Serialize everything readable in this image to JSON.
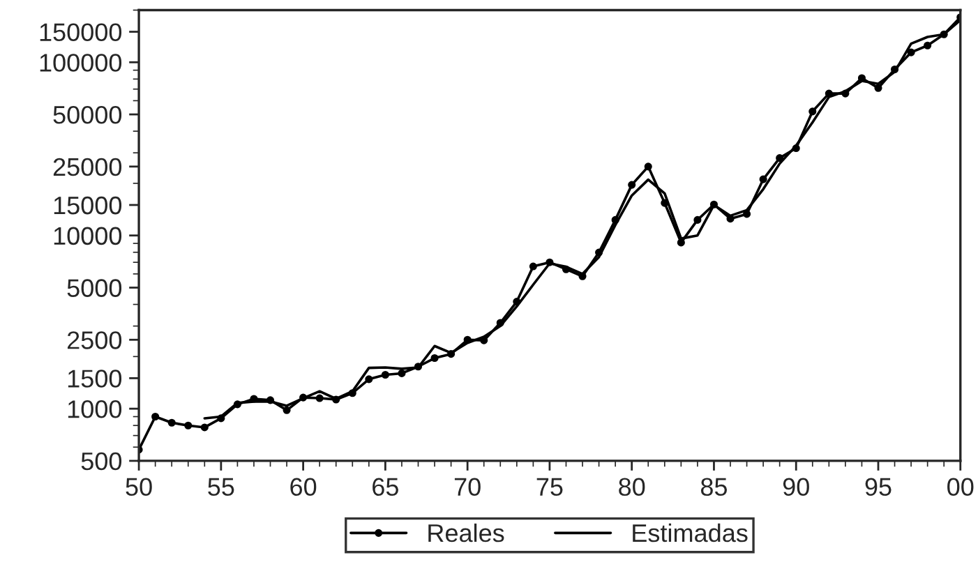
{
  "chart_data": {
    "type": "line",
    "x": [
      1950,
      1951,
      1952,
      1953,
      1954,
      1955,
      1956,
      1957,
      1958,
      1959,
      1960,
      1961,
      1962,
      1963,
      1964,
      1965,
      1966,
      1967,
      1968,
      1969,
      1970,
      1971,
      1972,
      1973,
      1974,
      1975,
      1976,
      1977,
      1978,
      1979,
      1980,
      1981,
      1982,
      1983,
      1984,
      1985,
      1986,
      1987,
      1988,
      1989,
      1990,
      1991,
      1992,
      1993,
      1994,
      1995,
      1996,
      1997,
      1998,
      1999,
      2000
    ],
    "series": [
      {
        "name": "Reales",
        "color": "#000000",
        "marker": "circle",
        "values": [
          580,
          900,
          830,
          800,
          780,
          880,
          1060,
          1140,
          1120,
          980,
          1160,
          1150,
          1130,
          1230,
          1480,
          1570,
          1600,
          1750,
          1960,
          2070,
          2500,
          2480,
          3130,
          4150,
          6630,
          7000,
          6380,
          5810,
          7980,
          12300,
          19600,
          25000,
          15400,
          9100,
          12300,
          15100,
          12500,
          13300,
          21100,
          28000,
          31900,
          52000,
          66000,
          66000,
          81000,
          71000,
          91000,
          114000,
          125000,
          145000,
          182000
        ]
      },
      {
        "name": "Estimadas",
        "color": "#000000",
        "marker": "none",
        "values": [
          null,
          null,
          null,
          null,
          880,
          900,
          1080,
          1100,
          1100,
          1040,
          1150,
          1260,
          1140,
          1260,
          1720,
          1730,
          1700,
          1730,
          2300,
          2100,
          2400,
          2600,
          3000,
          3900,
          5200,
          6900,
          6600,
          6000,
          7500,
          11500,
          17000,
          21000,
          17500,
          9600,
          10000,
          15000,
          13000,
          14000,
          18500,
          26000,
          33000,
          45000,
          63000,
          68000,
          78000,
          75000,
          88000,
          128000,
          140000,
          145000,
          175000
        ]
      }
    ],
    "log": "y",
    "xlim": [
      1950,
      2000
    ],
    "xticks": [
      {
        "value": 1950,
        "label": "50"
      },
      {
        "value": 1955,
        "label": "55"
      },
      {
        "value": 1960,
        "label": "60"
      },
      {
        "value": 1965,
        "label": "65"
      },
      {
        "value": 1970,
        "label": "70"
      },
      {
        "value": 1975,
        "label": "75"
      },
      {
        "value": 1980,
        "label": "80"
      },
      {
        "value": 1985,
        "label": "85"
      },
      {
        "value": 1990,
        "label": "90"
      },
      {
        "value": 1995,
        "label": "95"
      },
      {
        "value": 2000,
        "label": "00"
      }
    ],
    "ylim": [
      500,
      200000
    ],
    "yticks": [
      500,
      1000,
      1500,
      2500,
      5000,
      10000,
      15000,
      25000,
      50000,
      100000,
      150000
    ],
    "grid": false,
    "legend": "bottom",
    "line_style": "solid"
  }
}
